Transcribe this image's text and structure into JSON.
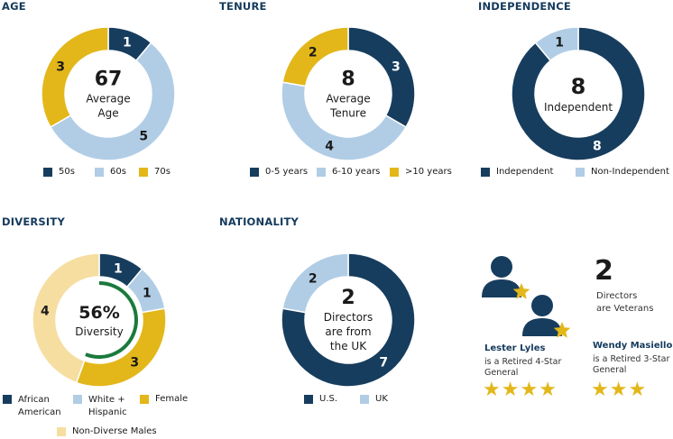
{
  "colors": {
    "navy": "#173d5e",
    "light_blue": "#b1cde6",
    "gold": "#e3b71a",
    "beige": "#f5dea0",
    "green": "#1a7a3c",
    "white": "#ffffff"
  },
  "chart_data": [
    {
      "id": "age",
      "type": "pie",
      "title": "AGE",
      "center_value": "67",
      "center_label_1": "Average",
      "center_label_2": "Age",
      "categories": [
        "50s",
        "60s",
        "70s"
      ],
      "values": [
        1,
        5,
        3
      ],
      "colors": [
        "#173d5e",
        "#b1cde6",
        "#e3b71a"
      ]
    },
    {
      "id": "tenure",
      "type": "pie",
      "title": "TENURE",
      "center_value": "8",
      "center_label_1": "Average",
      "center_label_2": "Tenure",
      "categories": [
        "0-5 years",
        "6-10 years",
        ">10 years"
      ],
      "values": [
        3,
        4,
        2
      ],
      "colors": [
        "#173d5e",
        "#b1cde6",
        "#e3b71a"
      ]
    },
    {
      "id": "independence",
      "type": "pie",
      "title": "INDEPENDENCE",
      "center_value": "8",
      "center_label_1": "Independent",
      "center_label_2": "",
      "categories": [
        "Independent",
        "Non-Independent"
      ],
      "values": [
        8,
        1
      ],
      "colors": [
        "#173d5e",
        "#b1cde6"
      ]
    },
    {
      "id": "diversity",
      "type": "pie",
      "title": "DIVERSITY",
      "center_value": "56%",
      "center_label_1": "Diversity",
      "center_label_2": "",
      "categories": [
        "African American",
        "White + Hispanic",
        "Female",
        "Non-Diverse Males"
      ],
      "values": [
        1,
        1,
        3,
        4
      ],
      "colors": [
        "#173d5e",
        "#b1cde6",
        "#e3b71a",
        "#f5dea0"
      ],
      "inner_ring_percent": 56
    },
    {
      "id": "nationality",
      "type": "pie",
      "title": "NATIONALITY",
      "center_value": "2",
      "center_label_1": "Directors",
      "center_label_2": "are from",
      "center_label_3": "the UK",
      "categories": [
        "U.S.",
        "UK"
      ],
      "values": [
        7,
        2
      ],
      "colors": [
        "#173d5e",
        "#b1cde6"
      ]
    }
  ],
  "veterans": {
    "count": "2",
    "desc_line1": "Directors",
    "desc_line2": "are Veterans",
    "people": [
      {
        "name": "Lester Lyles",
        "desc": "is a Retired 4-Star General",
        "stars": 4
      },
      {
        "name": "Wendy Masiello",
        "desc": "is a Retired 3-Star General",
        "stars": 3
      }
    ]
  },
  "icons": [
    "person-icon",
    "star-icon"
  ]
}
